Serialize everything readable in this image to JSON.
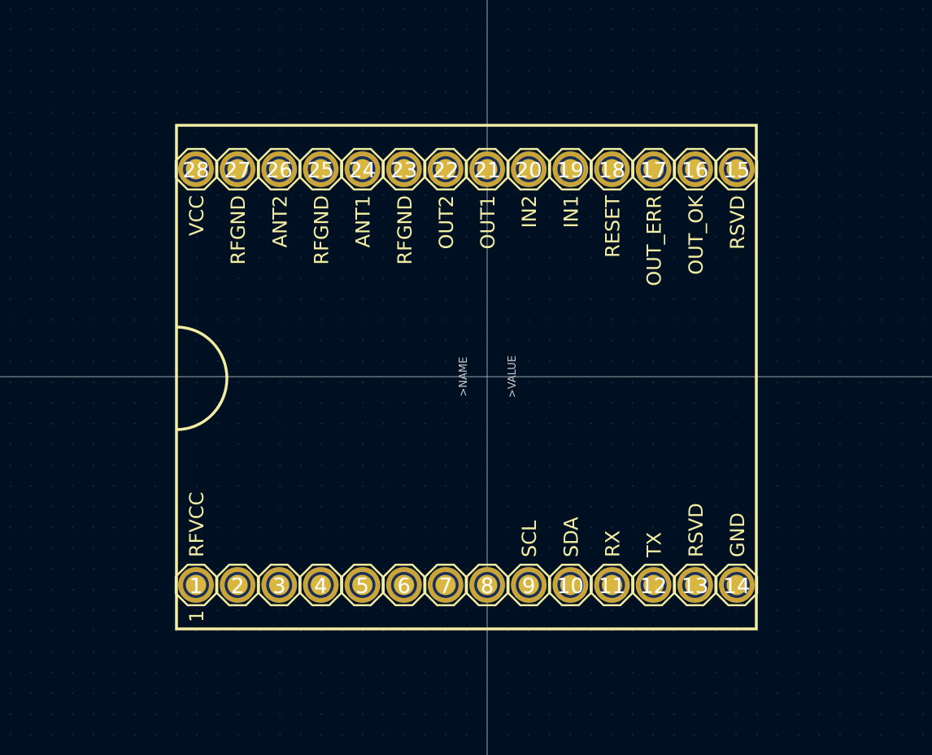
{
  "board": {
    "name_ref": ">NAME",
    "value_ref": ">VALUE",
    "pin1_marker": "1"
  },
  "colors": {
    "background": "#001023",
    "grid_dot": "#2b3a4f",
    "crosshair": "#9aa3ad",
    "silkscreen": "#f2eda1",
    "pad_copper": "#c8a43a",
    "pad_ring": "#d9b640",
    "drill": "#1a2f57",
    "pad_number": "#ffffff",
    "ref_text": "#c8c8c8"
  },
  "pins_top": [
    {
      "num": "28",
      "label": "VCC"
    },
    {
      "num": "27",
      "label": "RFGND"
    },
    {
      "num": "26",
      "label": "ANT2"
    },
    {
      "num": "25",
      "label": "RFGND"
    },
    {
      "num": "24",
      "label": "ANT1"
    },
    {
      "num": "23",
      "label": "RFGND"
    },
    {
      "num": "22",
      "label": "OUT2"
    },
    {
      "num": "21",
      "label": "OUT1"
    },
    {
      "num": "20",
      "label": "IN2"
    },
    {
      "num": "19",
      "label": "IN1"
    },
    {
      "num": "18",
      "label": "RESET"
    },
    {
      "num": "17",
      "label": "OUT_ERR"
    },
    {
      "num": "16",
      "label": "OUT_OK"
    },
    {
      "num": "15",
      "label": "RSVD"
    }
  ],
  "pins_bottom": [
    {
      "num": "1",
      "label": "RFVCC"
    },
    {
      "num": "2",
      "label": ""
    },
    {
      "num": "3",
      "label": ""
    },
    {
      "num": "4",
      "label": ""
    },
    {
      "num": "5",
      "label": ""
    },
    {
      "num": "6",
      "label": ""
    },
    {
      "num": "7",
      "label": ""
    },
    {
      "num": "8",
      "label": ""
    },
    {
      "num": "9",
      "label": "SCL"
    },
    {
      "num": "10",
      "label": "SDA"
    },
    {
      "num": "11",
      "label": "RX"
    },
    {
      "num": "12",
      "label": "TX"
    },
    {
      "num": "13",
      "label": "RSVD"
    },
    {
      "num": "14",
      "label": "GND"
    }
  ]
}
